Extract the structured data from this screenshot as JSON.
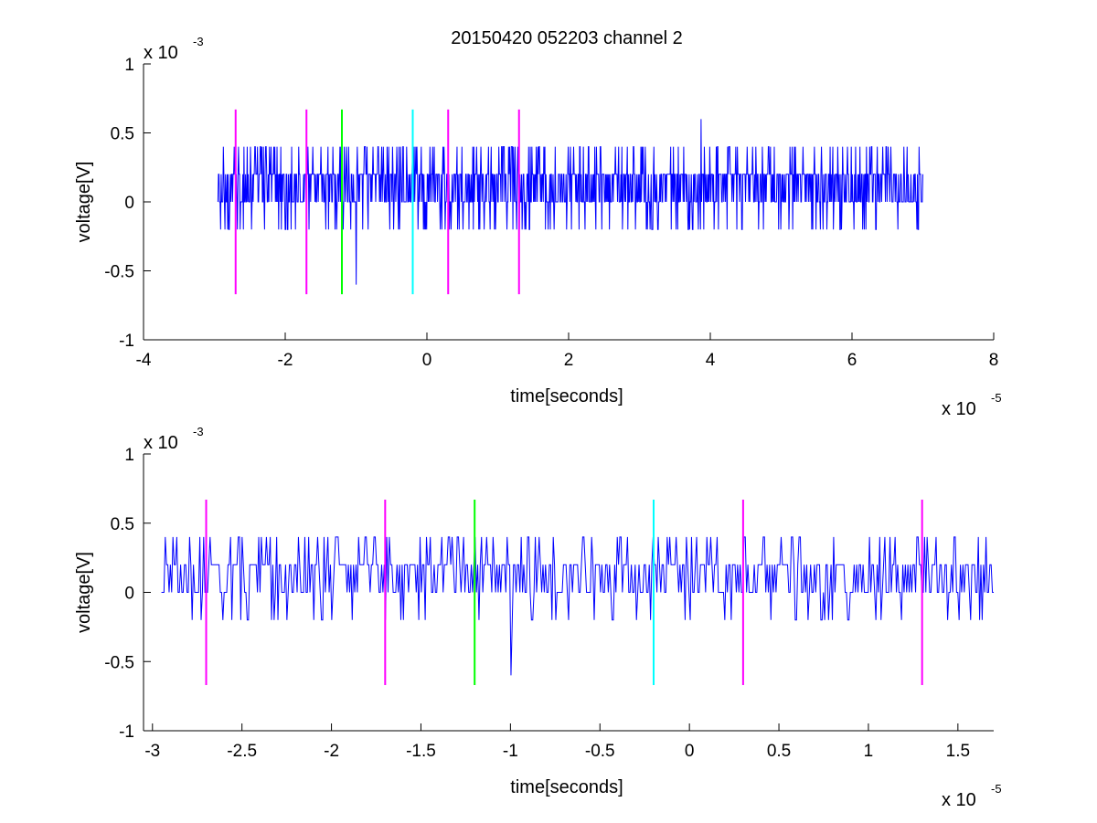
{
  "figure_title": "20150420 052203 channel 2",
  "chart_data": [
    {
      "type": "line",
      "title": "20150420 052203 channel 2",
      "xlabel": "time[seconds]",
      "ylabel": "voltage[V]",
      "x_exponent_label": {
        "base": "x 10",
        "exp": "-5"
      },
      "y_exponent_label": {
        "base": "x 10",
        "exp": "-3"
      },
      "xlim": [
        -4e-05,
        8e-05
      ],
      "ylim": [
        -0.001,
        0.001
      ],
      "x_tick_labels": [
        "-4",
        "-2",
        "0",
        "2",
        "4",
        "6",
        "8"
      ],
      "y_tick_labels": [
        "1",
        "0.5",
        "0",
        "-0.5",
        "-1"
      ],
      "x_ticks": [
        -4e-05,
        -2e-05,
        0,
        2e-05,
        4e-05,
        6e-05,
        8e-05
      ],
      "y_ticks": [
        0.001,
        0.0005,
        0,
        -0.0005,
        -0.001
      ],
      "grid": false,
      "series": [
        {
          "color": "#0000ff",
          "x_start": -2.95e-05,
          "x_end": 7e-05,
          "y_levels": [
            -0.0006,
            -0.0002,
            0,
            0.0002,
            0.0004,
            0.0006
          ],
          "y_min": -0.0006,
          "y_max": 0.0006
        }
      ],
      "markers": [
        {
          "x": -2.7e-05,
          "color": "#ff00ff",
          "y_range": [
            -0.00067,
            0.00067
          ]
        },
        {
          "x": -1.7e-05,
          "color": "#ff00ff",
          "y_range": [
            -0.00067,
            0.00067
          ]
        },
        {
          "x": -1.2e-05,
          "color": "#00ff00",
          "y_range": [
            -0.00067,
            0.00067
          ]
        },
        {
          "x": -2e-06,
          "color": "#00ffff",
          "y_range": [
            -0.00067,
            0.00067
          ]
        },
        {
          "x": 3e-06,
          "color": "#ff00ff",
          "y_range": [
            -0.00067,
            0.00067
          ]
        },
        {
          "x": 1.3e-05,
          "color": "#ff00ff",
          "y_range": [
            -0.00067,
            0.00067
          ]
        }
      ]
    },
    {
      "type": "line",
      "title": "",
      "xlabel": "time[seconds]",
      "ylabel": "voltage[V]",
      "x_exponent_label": {
        "base": "x 10",
        "exp": "-5"
      },
      "y_exponent_label": {
        "base": "x 10",
        "exp": "-3"
      },
      "xlim": [
        -3.05e-05,
        1.7e-05
      ],
      "ylim": [
        -0.001,
        0.001
      ],
      "x_tick_labels": [
        "-3",
        "-2.5",
        "-2",
        "-1.5",
        "-1",
        "-0.5",
        "0",
        "0.5",
        "1",
        "1.5"
      ],
      "y_tick_labels": [
        "1",
        "0.5",
        "0",
        "-0.5",
        "-1"
      ],
      "x_ticks": [
        -3e-05,
        -2.5e-05,
        -2e-05,
        -1.5e-05,
        -1e-05,
        -5e-06,
        0,
        5e-06,
        1e-05,
        1.5e-05
      ],
      "y_ticks": [
        0.001,
        0.0005,
        0,
        -0.0005,
        -0.001
      ],
      "grid": false,
      "series": [
        {
          "color": "#0000ff",
          "x_start": -2.95e-05,
          "x_end": 1.7e-05,
          "y_levels": [
            -0.0006,
            -0.0002,
            0,
            0.0002,
            0.0004
          ],
          "y_min": -0.0006,
          "y_max": 0.0004
        }
      ],
      "markers": [
        {
          "x": -2.7e-05,
          "color": "#ff00ff",
          "y_range": [
            -0.00067,
            0.00067
          ]
        },
        {
          "x": -1.7e-05,
          "color": "#ff00ff",
          "y_range": [
            -0.00067,
            0.00067
          ]
        },
        {
          "x": -1.2e-05,
          "color": "#00ff00",
          "y_range": [
            -0.00067,
            0.00067
          ]
        },
        {
          "x": -2e-06,
          "color": "#00ffff",
          "y_range": [
            -0.00067,
            0.00067
          ]
        },
        {
          "x": 3e-06,
          "color": "#ff00ff",
          "y_range": [
            -0.00067,
            0.00067
          ]
        },
        {
          "x": 1.3e-05,
          "color": "#ff00ff",
          "y_range": [
            -0.00067,
            0.00067
          ]
        }
      ]
    }
  ]
}
